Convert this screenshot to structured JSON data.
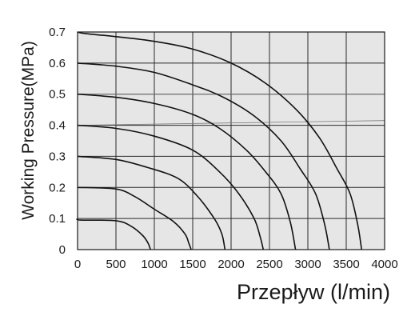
{
  "chart_data": {
    "type": "line",
    "xlabel": "Przepływ (l/min)",
    "ylabel": "Working Pressure(MPa)",
    "xlim": [
      0,
      4000
    ],
    "ylim": [
      0,
      0.7
    ],
    "x_ticks": [
      "0",
      "500",
      "1000",
      "1500",
      "2000",
      "2500",
      "3000",
      "3500",
      "4000"
    ],
    "y_ticks": [
      "0",
      "0.1",
      "0.2",
      "0.3",
      "0.4",
      "0.5",
      "0.6",
      "0.7"
    ],
    "grid": true,
    "plot_background": "#e6e6e6",
    "line_color": "#111111",
    "series": [
      {
        "points": [
          [
            0,
            0.1
          ],
          [
            40,
            0.095
          ],
          [
            500,
            0.093
          ],
          [
            700,
            0.075
          ],
          [
            850,
            0.045
          ],
          [
            920,
            0.02
          ],
          [
            950,
            0
          ]
        ]
      },
      {
        "points": [
          [
            0,
            0.2
          ],
          [
            500,
            0.195
          ],
          [
            750,
            0.17
          ],
          [
            1000,
            0.13
          ],
          [
            1250,
            0.09
          ],
          [
            1400,
            0.05
          ],
          [
            1450,
            0.02
          ],
          [
            1480,
            0
          ]
        ]
      },
      {
        "points": [
          [
            0,
            0.3
          ],
          [
            500,
            0.29
          ],
          [
            900,
            0.265
          ],
          [
            1300,
            0.23
          ],
          [
            1550,
            0.175
          ],
          [
            1780,
            0.1
          ],
          [
            1880,
            0.05
          ],
          [
            1920,
            0
          ]
        ]
      },
      {
        "points": [
          [
            0,
            0.4
          ],
          [
            500,
            0.39
          ],
          [
            1000,
            0.365
          ],
          [
            1500,
            0.32
          ],
          [
            1850,
            0.25
          ],
          [
            2100,
            0.18
          ],
          [
            2300,
            0.1
          ],
          [
            2380,
            0.04
          ],
          [
            2420,
            0
          ]
        ]
      },
      {
        "points": [
          [
            0,
            0.5
          ],
          [
            500,
            0.49
          ],
          [
            1000,
            0.47
          ],
          [
            1500,
            0.435
          ],
          [
            1850,
            0.39
          ],
          [
            2200,
            0.32
          ],
          [
            2450,
            0.25
          ],
          [
            2650,
            0.18
          ],
          [
            2770,
            0.09
          ],
          [
            2840,
            0
          ]
        ]
      },
      {
        "points": [
          [
            0,
            0.6
          ],
          [
            500,
            0.59
          ],
          [
            1000,
            0.57
          ],
          [
            1500,
            0.53
          ],
          [
            1900,
            0.49
          ],
          [
            2300,
            0.43
          ],
          [
            2650,
            0.35
          ],
          [
            2900,
            0.26
          ],
          [
            3100,
            0.18
          ],
          [
            3220,
            0.08
          ],
          [
            3280,
            0
          ]
        ]
      },
      {
        "points": [
          [
            0,
            0.7
          ],
          [
            100,
            0.695
          ],
          [
            500,
            0.685
          ],
          [
            1000,
            0.67
          ],
          [
            1500,
            0.645
          ],
          [
            2000,
            0.6
          ],
          [
            2450,
            0.535
          ],
          [
            2850,
            0.45
          ],
          [
            3150,
            0.36
          ],
          [
            3380,
            0.26
          ],
          [
            3550,
            0.18
          ],
          [
            3650,
            0.08
          ],
          [
            3700,
            0
          ]
        ]
      }
    ],
    "guide_lines": [
      {
        "points": [
          [
            0,
            0.5
          ],
          [
            4000,
            0.5
          ]
        ]
      },
      {
        "points": [
          [
            0,
            0.4
          ],
          [
            4000,
            0.415
          ]
        ]
      }
    ]
  }
}
